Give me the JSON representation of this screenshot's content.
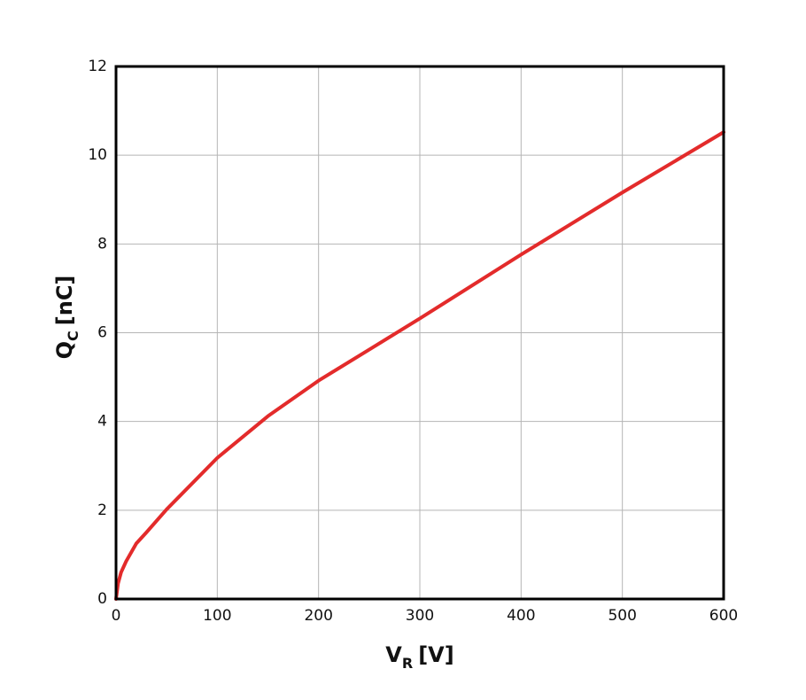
{
  "chart_data": {
    "type": "line",
    "xlabel": {
      "main": "V",
      "sub": "R",
      "unit": "[V]"
    },
    "ylabel": {
      "main": "Q",
      "sub": "C",
      "unit": "[nC]"
    },
    "xlim": [
      0,
      600
    ],
    "xticks": [
      0,
      100,
      200,
      300,
      400,
      500,
      600
    ],
    "ylim": [
      0,
      12
    ],
    "yticks": [
      0,
      2,
      4,
      6,
      8,
      10,
      12
    ],
    "grid": true,
    "x": [
      0,
      2,
      5,
      10,
      20,
      30,
      50,
      100,
      150,
      200,
      250,
      300,
      400,
      500,
      600
    ],
    "series": [
      {
        "name": "Qc",
        "color": "#e32b2b",
        "values": [
          0,
          0.35,
          0.6,
          0.85,
          1.25,
          1.5,
          2.02,
          3.18,
          4.12,
          4.92,
          5.62,
          6.32,
          7.76,
          9.16,
          10.52
        ]
      }
    ]
  }
}
